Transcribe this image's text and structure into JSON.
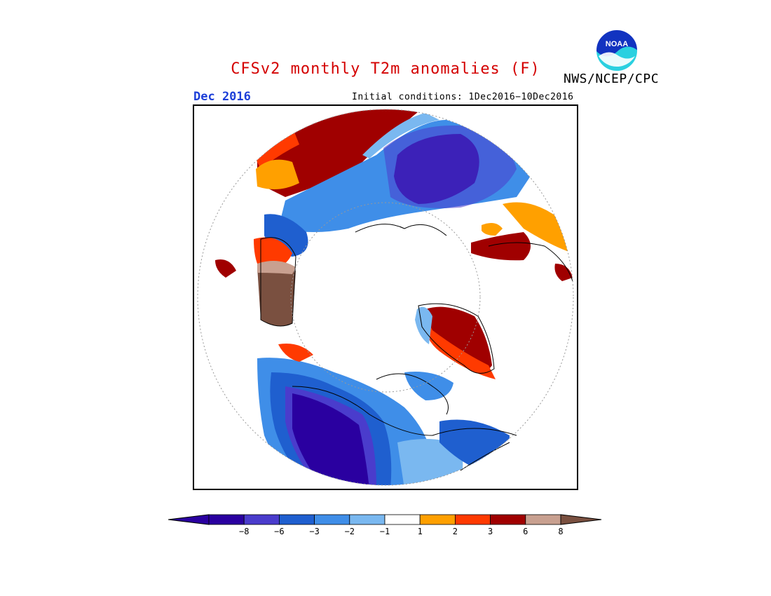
{
  "title": "CFSv2 monthly T2m anomalies (F)",
  "title_color": "#d40000",
  "month_label": "Dec 2016",
  "month_color": "#1d3fd8",
  "initial_conditions": "Initial conditions: 1Dec2016−10Dec2016",
  "agency": "NWS/NCEP/CPC",
  "logo": {
    "text": "NOAA",
    "icon": "noaa-logo-icon"
  },
  "colorbar": {
    "bins": [
      {
        "color": "#2a00a0",
        "label": "−8"
      },
      {
        "color": "#4a3ccc",
        "label": "−6"
      },
      {
        "color": "#1f5fcf",
        "label": "−3"
      },
      {
        "color": "#3f8ee8",
        "label": "−2"
      },
      {
        "color": "#7ab8f0",
        "label": "−1"
      },
      {
        "color": "#ffffff",
        "label": "1"
      },
      {
        "color": "#ffa000",
        "label": "2"
      },
      {
        "color": "#ff3a00",
        "label": "3"
      },
      {
        "color": "#a00000",
        "label": "6"
      },
      {
        "color": "#c8a090",
        "label": "8"
      },
      {
        "color": "#7a5040",
        "label": ""
      }
    ],
    "low_arrow_color": "#2a00a0",
    "high_arrow_color": "#7a5040"
  },
  "palette": {
    "deep_purple": "#2a00a0",
    "purple": "#4a3ccc",
    "blue": "#1f5fcf",
    "mid_blue": "#3f8ee8",
    "light_blue": "#7ab8f0",
    "orange": "#ffa000",
    "red_orange": "#ff3a00",
    "dark_red": "#a00000",
    "tan": "#c8a090",
    "brown": "#7a5040"
  }
}
